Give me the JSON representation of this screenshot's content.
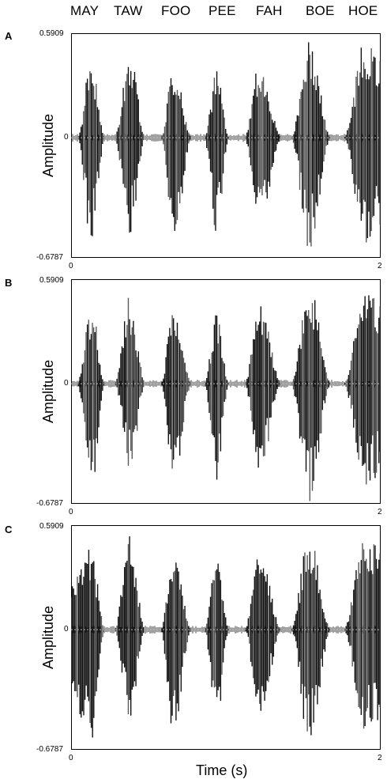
{
  "syllables": [
    "MAY",
    "TAW",
    "FOO",
    "PEE",
    "FAH",
    "BOE",
    "HOE"
  ],
  "panels": [
    {
      "letter": "A",
      "ymax": "0.5909",
      "ymin": "-0.6787",
      "yzero": "0",
      "xstart": "0",
      "xend": "2",
      "ylabel": "Amplitude"
    },
    {
      "letter": "B",
      "ymax": "0.5909",
      "ymin": "-0.6787",
      "yzero": "0",
      "xstart": "0",
      "xend": "2",
      "ylabel": "Amplitude"
    },
    {
      "letter": "C",
      "ymax": "0.5909",
      "ymin": "-0.6787",
      "yzero": "0",
      "xstart": "0",
      "xend": "2",
      "ylabel": "Amplitude"
    }
  ],
  "xlabel": "Time (s)",
  "colors": {
    "wave_dark": "#111111",
    "wave_grey": "#5a5a5a",
    "zero_line": "#bbbbbb"
  },
  "chart_data": [
    {
      "type": "area",
      "title": "A",
      "xlabel": "",
      "ylabel": "Amplitude",
      "xlim": [
        0,
        2
      ],
      "ylim": [
        -0.6787,
        0.5909
      ],
      "series": [
        {
          "name": "MAY",
          "x": [
            0.04,
            0.13,
            0.22
          ],
          "y_peak": [
            0.0,
            0.45,
            0.0
          ],
          "y_trough": [
            0.0,
            -0.6,
            0.0
          ]
        },
        {
          "name": "TAW",
          "x": [
            0.28,
            0.38,
            0.48
          ],
          "y_peak": [
            0.0,
            0.52,
            0.0
          ],
          "y_trough": [
            0.0,
            -0.55,
            0.0
          ]
        },
        {
          "name": "FOO",
          "x": [
            0.58,
            0.66,
            0.78
          ],
          "y_peak": [
            0.0,
            0.42,
            0.0
          ],
          "y_trough": [
            0.0,
            -0.62,
            0.0
          ]
        },
        {
          "name": "PEE",
          "x": [
            0.86,
            0.94,
            1.02
          ],
          "y_peak": [
            0.0,
            0.38,
            0.0
          ],
          "y_trough": [
            0.0,
            -0.55,
            0.0
          ]
        },
        {
          "name": "FAH",
          "x": [
            1.12,
            1.22,
            1.36
          ],
          "y_peak": [
            0.0,
            0.44,
            0.0
          ],
          "y_trough": [
            0.0,
            -0.52,
            0.0
          ]
        },
        {
          "name": "BOE",
          "x": [
            1.42,
            1.54,
            1.68
          ],
          "y_peak": [
            0.0,
            0.57,
            0.0
          ],
          "y_trough": [
            0.0,
            -0.65,
            0.0
          ]
        },
        {
          "name": "HOE",
          "x": [
            1.76,
            1.9,
            2.0
          ],
          "y_peak": [
            0.0,
            0.56,
            0.45
          ],
          "y_trough": [
            0.0,
            -0.6,
            -0.5
          ]
        }
      ]
    },
    {
      "type": "area",
      "title": "B",
      "xlabel": "",
      "ylabel": "Amplitude",
      "xlim": [
        0,
        2
      ],
      "ylim": [
        -0.6787,
        0.5909
      ],
      "series": [
        {
          "name": "MAY",
          "x": [
            0.04,
            0.13,
            0.22
          ],
          "y_peak": [
            0.0,
            0.46,
            0.0
          ],
          "y_trough": [
            0.0,
            -0.62,
            0.0
          ]
        },
        {
          "name": "TAW",
          "x": [
            0.28,
            0.38,
            0.48
          ],
          "y_peak": [
            0.0,
            0.5,
            0.0
          ],
          "y_trough": [
            0.0,
            -0.5,
            0.0
          ]
        },
        {
          "name": "FOO",
          "x": [
            0.58,
            0.66,
            0.78
          ],
          "y_peak": [
            0.0,
            0.44,
            0.0
          ],
          "y_trough": [
            0.0,
            -0.6,
            0.0
          ]
        },
        {
          "name": "PEE",
          "x": [
            0.86,
            0.94,
            1.02
          ],
          "y_peak": [
            0.0,
            0.4,
            0.0
          ],
          "y_trough": [
            0.0,
            -0.55,
            0.0
          ]
        },
        {
          "name": "FAH",
          "x": [
            1.12,
            1.22,
            1.36
          ],
          "y_peak": [
            0.0,
            0.45,
            0.0
          ],
          "y_trough": [
            0.0,
            -0.5,
            0.0
          ]
        },
        {
          "name": "BOE",
          "x": [
            1.42,
            1.54,
            1.68
          ],
          "y_peak": [
            0.0,
            0.58,
            0.0
          ],
          "y_trough": [
            0.0,
            -0.67,
            0.0
          ]
        },
        {
          "name": "HOE",
          "x": [
            1.76,
            1.9,
            2.0
          ],
          "y_peak": [
            0.0,
            0.55,
            0.45
          ],
          "y_trough": [
            0.0,
            -0.62,
            -0.5
          ]
        }
      ]
    },
    {
      "type": "area",
      "title": "C",
      "xlabel": "Time (s)",
      "ylabel": "Amplitude",
      "xlim": [
        0,
        2
      ],
      "ylim": [
        -0.6787,
        0.5909
      ],
      "series": [
        {
          "name": "MAY",
          "x": [
            0.0,
            0.13,
            0.22
          ],
          "y_peak": [
            0.3,
            0.48,
            0.0
          ],
          "y_trough": [
            -0.4,
            -0.66,
            0.0
          ]
        },
        {
          "name": "TAW",
          "x": [
            0.28,
            0.38,
            0.48
          ],
          "y_peak": [
            0.0,
            0.55,
            0.0
          ],
          "y_trough": [
            0.0,
            -0.52,
            0.0
          ]
        },
        {
          "name": "FOO",
          "x": [
            0.58,
            0.66,
            0.78
          ],
          "y_peak": [
            0.0,
            0.46,
            0.0
          ],
          "y_trough": [
            0.0,
            -0.62,
            0.0
          ]
        },
        {
          "name": "PEE",
          "x": [
            0.86,
            0.94,
            1.02
          ],
          "y_peak": [
            0.0,
            0.42,
            0.0
          ],
          "y_trough": [
            0.0,
            -0.55,
            0.0
          ]
        },
        {
          "name": "FAH",
          "x": [
            1.12,
            1.22,
            1.36
          ],
          "y_peak": [
            0.0,
            0.45,
            0.0
          ],
          "y_trough": [
            0.0,
            -0.5,
            0.0
          ]
        },
        {
          "name": "BOE",
          "x": [
            1.42,
            1.54,
            1.68
          ],
          "y_peak": [
            0.0,
            0.58,
            0.0
          ],
          "y_trough": [
            0.0,
            -0.67,
            0.0
          ]
        },
        {
          "name": "HOE",
          "x": [
            1.76,
            1.9,
            2.0
          ],
          "y_peak": [
            0.0,
            0.57,
            0.45
          ],
          "y_trough": [
            0.0,
            -0.62,
            -0.5
          ]
        }
      ]
    }
  ]
}
